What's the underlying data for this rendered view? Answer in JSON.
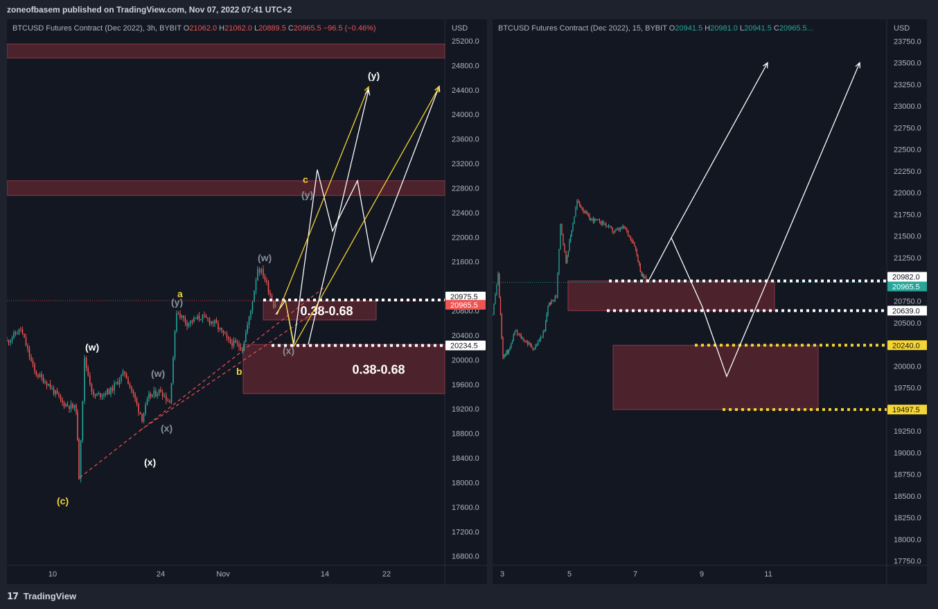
{
  "header": {
    "publisher_line": "zoneofbasem published on TradingView.com, Nov 07, 2022 07:41 UTC+2"
  },
  "footer": {
    "brand": "TradingView"
  },
  "chart_data": [
    {
      "type": "candlestick",
      "legend": {
        "symbol": "BTCUSD Futures Contract (Dec 2022), 3h, BYBIT",
        "o_label": "O",
        "o": "21062.0",
        "h_label": "H",
        "h": "21062.0",
        "l_label": "L",
        "l": "20889.5",
        "c_label": "C",
        "c": "20965.5",
        "change": "−96.5 (−0.46%)"
      },
      "currency": "USD",
      "ylim": [
        16650,
        25550
      ],
      "y_ticks": [
        "25200.0",
        "24800.0",
        "24400.0",
        "24000.0",
        "23600.0",
        "23200.0",
        "22800.0",
        "22400.0",
        "22000.0",
        "21600.0",
        "20800.0",
        "20400.0",
        "20000.0",
        "19600.0",
        "19200.0",
        "18800.0",
        "18400.0",
        "18000.0",
        "17600.0",
        "17200.0",
        "16800.0"
      ],
      "x_ticks": [
        "10",
        "24",
        "Nov",
        "14",
        "22"
      ],
      "price_tags": [
        {
          "label": "20975.5",
          "value": 20975.5,
          "bg": "#ffffff",
          "fg": "#131722"
        },
        {
          "label": "20965.5",
          "value": 20965.5,
          "bg": "#ef5350",
          "fg": "#ffffff"
        },
        {
          "label": "20234.5",
          "value": 20234.5,
          "bg": "#ffffff",
          "fg": "#131722"
        }
      ],
      "zones": [
        {
          "top": 25150,
          "bottom": 24920
        },
        {
          "top": 22920,
          "bottom": 22680
        },
        {
          "top": 20960,
          "bottom": 20650,
          "label": "0.38-0.68"
        },
        {
          "top": 20250,
          "bottom": 19450,
          "label": "0.38-0.68"
        }
      ],
      "wave_labels": [
        {
          "text": "(y)",
          "color": "#ffffff"
        },
        {
          "text": "c",
          "color": "#f5d533"
        },
        {
          "text": "(y)",
          "color": "#8a8f9c"
        },
        {
          "text": "(w)",
          "color": "#8a8f9c"
        },
        {
          "text": "a",
          "color": "#f5d533"
        },
        {
          "text": "(y)",
          "color": "#8a8f9c"
        },
        {
          "text": "(w)",
          "color": "#ffffff"
        },
        {
          "text": "(w)",
          "color": "#8a8f9c"
        },
        {
          "text": "b",
          "color": "#f5d533"
        },
        {
          "text": "(x)",
          "color": "#8a8f9c"
        },
        {
          "text": "(x)",
          "color": "#8a8f9c"
        },
        {
          "text": "(x)",
          "color": "#ffffff"
        },
        {
          "text": "(c)",
          "color": "#f5d533"
        }
      ]
    },
    {
      "type": "candlestick",
      "legend": {
        "symbol": "BTCUSD Futures Contract (Dec 2022), 15, BYBIT",
        "o_label": "O",
        "o": "20941.5",
        "h_label": "H",
        "h": "20981.0",
        "l_label": "L",
        "l": "20941.5",
        "c_label": "C",
        "c": "20965.5..."
      },
      "currency": "USD",
      "ylim": [
        17700,
        24000
      ],
      "y_ticks": [
        "23750.0",
        "23500.0",
        "23250.0",
        "23000.0",
        "22750.0",
        "22500.0",
        "22250.0",
        "22000.0",
        "21750.0",
        "21500.0",
        "21250.0",
        "21000.0",
        "20750.0",
        "20500.0",
        "20250.0",
        "20000.0",
        "19750.0",
        "19500.0",
        "19250.0",
        "19000.0",
        "18750.0",
        "18500.0",
        "18250.0",
        "18000.0",
        "17750.0"
      ],
      "x_ticks": [
        "3",
        "5",
        "7",
        "9",
        "11"
      ],
      "price_tags": [
        {
          "label": "20982.0",
          "value": 20982.0,
          "bg": "#ffffff",
          "fg": "#131722"
        },
        {
          "label": "20965.5",
          "value": 20965.5,
          "bg": "#26a69a",
          "fg": "#ffffff"
        },
        {
          "label": "20639.0",
          "value": 20639.0,
          "bg": "#ffffff",
          "fg": "#131722"
        },
        {
          "label": "20240.0",
          "value": 20240.0,
          "bg": "#f5d533",
          "fg": "#131722"
        },
        {
          "label": "19497.5",
          "value": 19497.5,
          "bg": "#f5d533",
          "fg": "#131722"
        }
      ],
      "zones": [
        {
          "top": 20982,
          "bottom": 20639
        },
        {
          "top": 20240,
          "bottom": 19497.5
        }
      ]
    }
  ],
  "colors": {
    "up": "#26a69a",
    "down": "#ef5350",
    "zone": "#5c2530",
    "panel": "#131722",
    "page": "#1e222d"
  }
}
